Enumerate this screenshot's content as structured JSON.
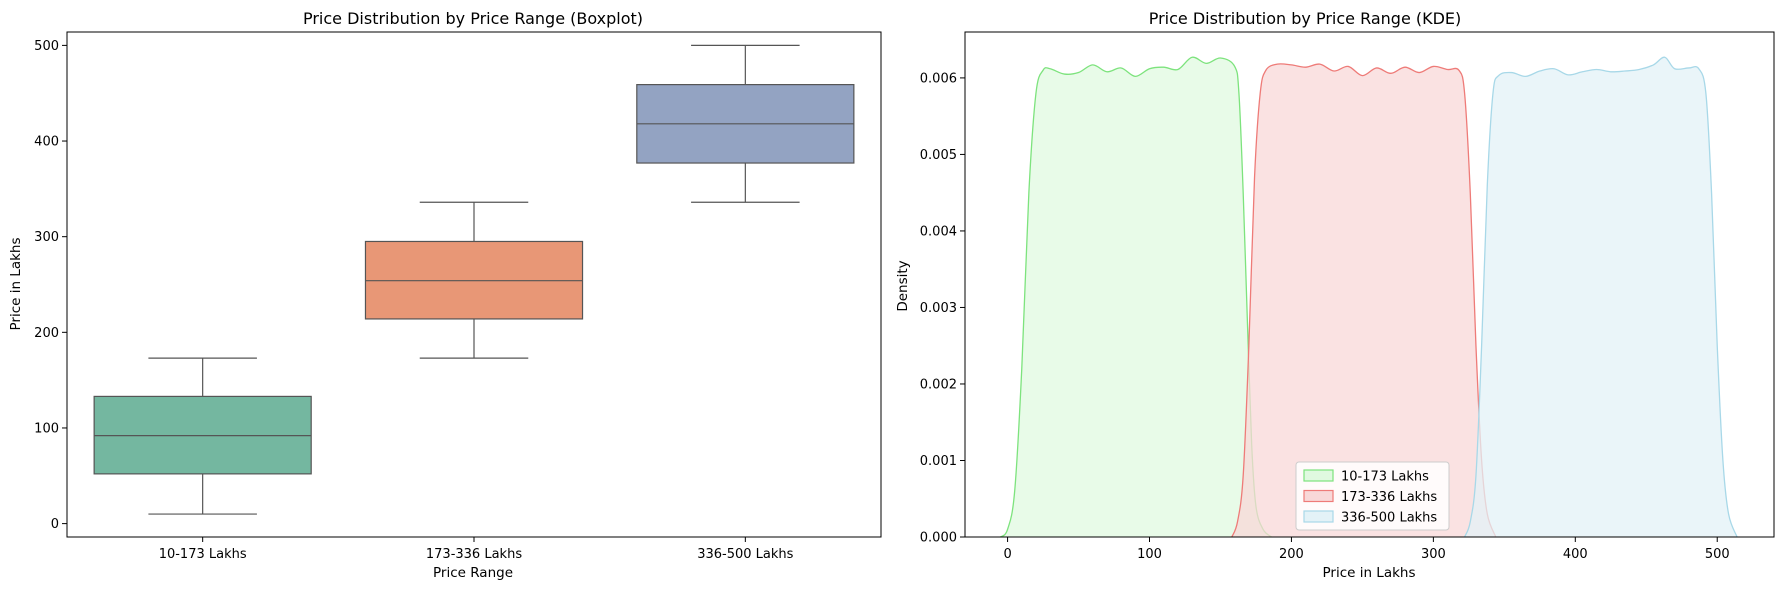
{
  "chart_data": [
    {
      "type": "boxplot",
      "title": "Price Distribution by Price Range (Boxplot)",
      "xlabel": "Price Range",
      "ylabel": "Price in Lakhs",
      "ylim": [
        -14,
        514
      ],
      "yticks": [
        0,
        100,
        200,
        300,
        400,
        500
      ],
      "categories": [
        "10-173 Lakhs",
        "173-336 Lakhs",
        "336-500 Lakhs"
      ],
      "boxes": [
        {
          "name": "10-173 Lakhs",
          "min": 10,
          "q1": 52,
          "median": 92,
          "q3": 133,
          "max": 173,
          "color": "#74b7a0"
        },
        {
          "name": "173-336 Lakhs",
          "min": 173,
          "q1": 214,
          "median": 254,
          "q3": 295,
          "max": 336,
          "color": "#e89776"
        },
        {
          "name": "336-500 Lakhs",
          "min": 336,
          "q1": 377,
          "median": 418,
          "q3": 459,
          "max": 500,
          "color": "#93a3c2"
        }
      ],
      "grid": false
    },
    {
      "type": "area",
      "title": "Price Distribution by Price Range (KDE)",
      "xlabel": "Price in Lakhs",
      "ylabel": "Density",
      "xlim": [
        -30,
        540
      ],
      "ylim": [
        0,
        0.0066
      ],
      "xticks": [
        0,
        100,
        200,
        300,
        400,
        500
      ],
      "yticks": [
        0.0,
        0.001,
        0.002,
        0.003,
        0.004,
        0.005,
        0.006
      ],
      "ytick_labels": [
        "0.000",
        "0.001",
        "0.002",
        "0.003",
        "0.004",
        "0.005",
        "0.006"
      ],
      "legend_position": "lower-center",
      "grid": false,
      "series": [
        {
          "name": "10-173 Lakhs",
          "stroke": "#7de37d",
          "fill": "#e0f9e0",
          "points": [
            [
              -5,
              0
            ],
            [
              0,
              0.0001
            ],
            [
              5,
              0.0006
            ],
            [
              10,
              0.0022
            ],
            [
              15,
              0.0045
            ],
            [
              20,
              0.0058
            ],
            [
              25,
              0.0061
            ],
            [
              30,
              0.00612
            ],
            [
              40,
              0.00605
            ],
            [
              50,
              0.00607
            ],
            [
              60,
              0.00617
            ],
            [
              70,
              0.00608
            ],
            [
              80,
              0.00613
            ],
            [
              90,
              0.00602
            ],
            [
              100,
              0.00612
            ],
            [
              110,
              0.00614
            ],
            [
              120,
              0.00611
            ],
            [
              130,
              0.00627
            ],
            [
              140,
              0.00619
            ],
            [
              150,
              0.00626
            ],
            [
              160,
              0.00615
            ],
            [
              163,
              0.0058
            ],
            [
              166,
              0.0045
            ],
            [
              169,
              0.0028
            ],
            [
              172,
              0.0012
            ],
            [
              175,
              0.0004
            ],
            [
              180,
              0.0001
            ],
            [
              186,
              0
            ]
          ]
        },
        {
          "name": "173-336 Lakhs",
          "stroke": "#ee7b78",
          "fill": "#f8d8d8",
          "points": [
            [
              158,
              0
            ],
            [
              162,
              0.0002
            ],
            [
              166,
              0.0008
            ],
            [
              170,
              0.0025
            ],
            [
              174,
              0.0047
            ],
            [
              178,
              0.0058
            ],
            [
              182,
              0.0061
            ],
            [
              190,
              0.00618
            ],
            [
              200,
              0.00617
            ],
            [
              210,
              0.00614
            ],
            [
              220,
              0.00618
            ],
            [
              230,
              0.00609
            ],
            [
              240,
              0.00615
            ],
            [
              250,
              0.00603
            ],
            [
              260,
              0.00613
            ],
            [
              270,
              0.00606
            ],
            [
              280,
              0.00614
            ],
            [
              290,
              0.00607
            ],
            [
              300,
              0.00615
            ],
            [
              310,
              0.00611
            ],
            [
              318,
              0.0061
            ],
            [
              322,
              0.0058
            ],
            [
              326,
              0.0045
            ],
            [
              330,
              0.0025
            ],
            [
              334,
              0.001
            ],
            [
              338,
              0.0003
            ],
            [
              344,
              0
            ]
          ]
        },
        {
          "name": "336-500 Lakhs",
          "stroke": "#a8d8e8",
          "fill": "#e3f2f7",
          "points": [
            [
              322,
              0
            ],
            [
              326,
              0.0002
            ],
            [
              330,
              0.0008
            ],
            [
              334,
              0.0025
            ],
            [
              338,
              0.0046
            ],
            [
              342,
              0.0058
            ],
            [
              346,
              0.00603
            ],
            [
              355,
              0.00607
            ],
            [
              365,
              0.00602
            ],
            [
              375,
              0.00609
            ],
            [
              385,
              0.00612
            ],
            [
              395,
              0.00604
            ],
            [
              405,
              0.00608
            ],
            [
              415,
              0.00611
            ],
            [
              425,
              0.00608
            ],
            [
              435,
              0.00609
            ],
            [
              445,
              0.00611
            ],
            [
              455,
              0.00617
            ],
            [
              463,
              0.00627
            ],
            [
              470,
              0.00612
            ],
            [
              480,
              0.00613
            ],
            [
              487,
              0.00612
            ],
            [
              492,
              0.0058
            ],
            [
              496,
              0.0045
            ],
            [
              500,
              0.0025
            ],
            [
              504,
              0.001
            ],
            [
              508,
              0.0003
            ],
            [
              514,
              0
            ]
          ]
        }
      ]
    }
  ]
}
